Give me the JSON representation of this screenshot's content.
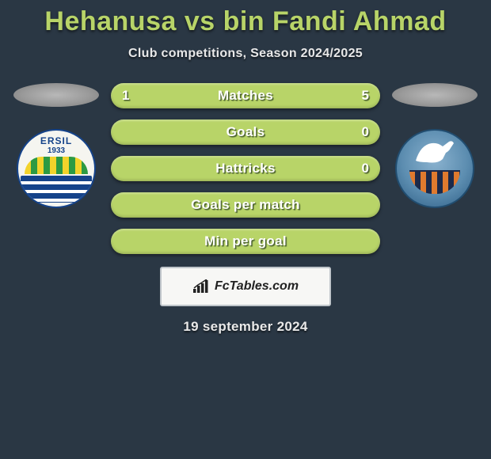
{
  "title": "Hehanusa vs bin Fandi Ahmad",
  "subtitle": "Club competitions, Season 2024/2025",
  "date": "19 september 2024",
  "brand": "FcTables.com",
  "colors": {
    "background": "#2a3744",
    "accent": "#b8d468",
    "title": "#b8d468",
    "text": "#ffffff"
  },
  "left_club": {
    "top_text": "ERSIL",
    "year": "1933"
  },
  "bars": {
    "type": "comparison-bars",
    "bar_color": "#b8d468",
    "label_color": "#ffffff",
    "label_fontsize": 17,
    "rows": [
      {
        "label": "Matches",
        "left": "1",
        "right": "5"
      },
      {
        "label": "Goals",
        "left": "",
        "right": "0"
      },
      {
        "label": "Hattricks",
        "left": "",
        "right": "0"
      },
      {
        "label": "Goals per match",
        "left": "",
        "right": ""
      },
      {
        "label": "Min per goal",
        "left": "",
        "right": ""
      }
    ]
  }
}
